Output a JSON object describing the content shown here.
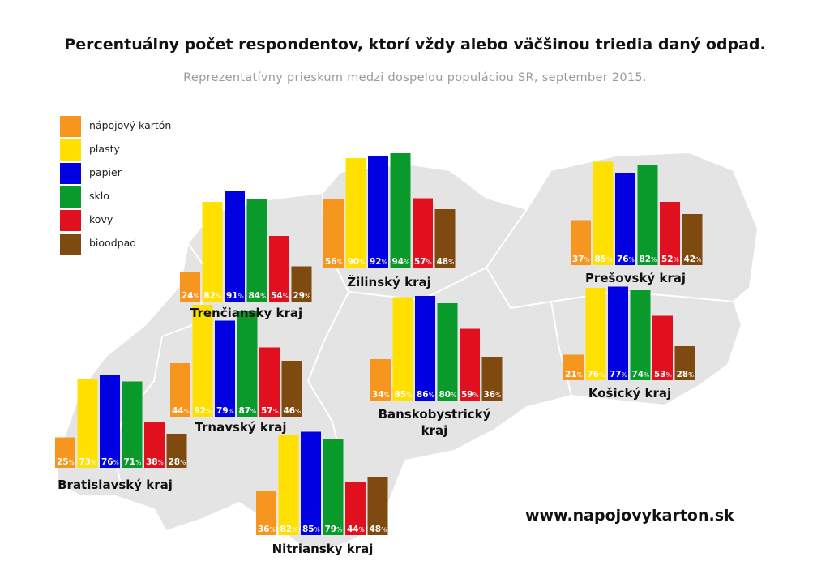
{
  "header": {
    "title": "Percentuálny počet respondentov, ktorí vždy alebo väčšinou triedia daný odpad.",
    "subtitle": "Reprezentatívny prieskum medzi dospelou populáciou SR, september 2015."
  },
  "footer": {
    "url": "www.napojovykarton.sk"
  },
  "legend": {
    "items": [
      {
        "label": "nápojový kartón",
        "color": "#F7961E"
      },
      {
        "label": "plasty",
        "color": "#FFE000"
      },
      {
        "label": "papier",
        "color": "#0000E0"
      },
      {
        "label": "sklo",
        "color": "#0A9A2C"
      },
      {
        "label": "kovy",
        "color": "#E0101E"
      },
      {
        "label": "bioodpad",
        "color": "#7E4A10"
      }
    ]
  },
  "chart_data": {
    "type": "bar",
    "title": "Percentuálny počet respondentov, ktorí vždy alebo väčšinou triedia daný odpad.",
    "subtitle": "Reprezentatívny prieskum medzi dospelou populáciou SR, september 2015.",
    "unit": "%",
    "categories": [
      "nápojový kartón",
      "plasty",
      "papier",
      "sklo",
      "kovy",
      "bioodpad"
    ],
    "colors": [
      "#F7961E",
      "#FFE000",
      "#0000E0",
      "#0A9A2C",
      "#E0101E",
      "#7E4A10"
    ],
    "ylim": [
      0,
      100
    ],
    "grid": false,
    "legend": "top-left",
    "regions": [
      {
        "name": "Bratislavský kraj",
        "values": [
          25,
          73,
          76,
          71,
          38,
          28
        ]
      },
      {
        "name": "Trnavský kraj",
        "values": [
          44,
          92,
          79,
          87,
          57,
          46
        ]
      },
      {
        "name": "Trenčiansky kraj",
        "values": [
          24,
          82,
          91,
          84,
          54,
          29
        ]
      },
      {
        "name": "Nitriansky kraj",
        "values": [
          36,
          82,
          85,
          79,
          44,
          48
        ]
      },
      {
        "name": "Žilinský kraj",
        "values": [
          56,
          90,
          92,
          94,
          57,
          48
        ]
      },
      {
        "name": "Banskobystrický kraj",
        "values": [
          34,
          85,
          86,
          80,
          59,
          36
        ]
      },
      {
        "name": "Prešovský kraj",
        "values": [
          37,
          85,
          76,
          82,
          52,
          42
        ]
      },
      {
        "name": "Košický kraj",
        "values": [
          21,
          76,
          77,
          74,
          53,
          28
        ]
      }
    ]
  }
}
